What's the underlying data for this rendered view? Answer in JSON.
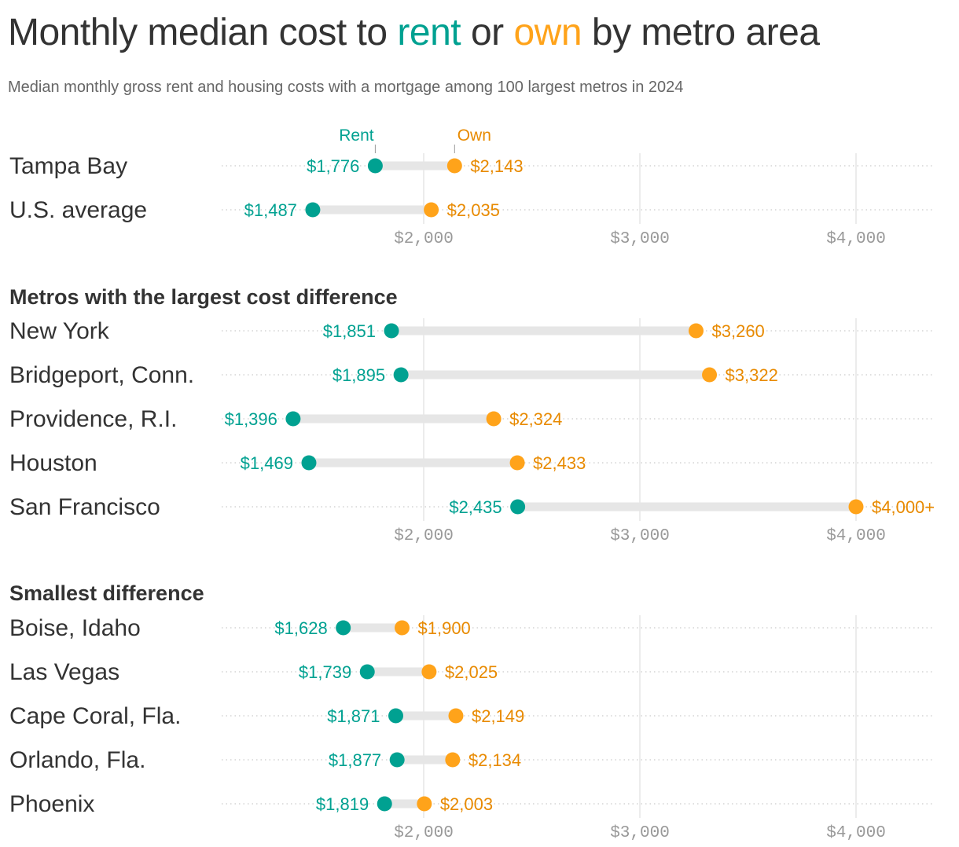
{
  "title": {
    "prefix": "Monthly median cost to ",
    "rent_word": "rent",
    "middle": " or ",
    "own_word": "own",
    "suffix": " by metro area"
  },
  "subtitle": "Median monthly gross rent and housing costs with a mortgage among 100 largest metros in 2024",
  "colors": {
    "rent": "#00a191",
    "own": "#ffa31a",
    "rent_label": "#00a191",
    "own_label": "#e88a00",
    "bar": "#e6e6e6",
    "grid": "#e0e0e0"
  },
  "chart_data": [
    {
      "type": "dumbbell",
      "title": "",
      "legend": {
        "rent": "Rent",
        "own": "Own"
      },
      "xlim": [
        1065,
        4360
      ],
      "xticks": [
        2000,
        3000,
        4000
      ],
      "xtick_labels": [
        "$2,000",
        "$3,000",
        "$4,000"
      ],
      "rows": [
        {
          "label": "Tampa Bay",
          "rent": 1776,
          "own": 2143,
          "rent_label": "$1,776",
          "own_label": "$2,143"
        },
        {
          "label": "U.S. average",
          "rent": 1487,
          "own": 2035,
          "rent_label": "$1,487",
          "own_label": "$2,035"
        }
      ]
    },
    {
      "type": "dumbbell",
      "title": "Metros with the largest cost difference",
      "xlim": [
        1065,
        4360
      ],
      "xticks": [
        2000,
        3000,
        4000
      ],
      "xtick_labels": [
        "$2,000",
        "$3,000",
        "$4,000"
      ],
      "rows": [
        {
          "label": "New York",
          "rent": 1851,
          "own": 3260,
          "rent_label": "$1,851",
          "own_label": "$3,260"
        },
        {
          "label": "Bridgeport, Conn.",
          "rent": 1895,
          "own": 3322,
          "rent_label": "$1,895",
          "own_label": "$3,322"
        },
        {
          "label": "Providence, R.I.",
          "rent": 1396,
          "own": 2324,
          "rent_label": "$1,396",
          "own_label": "$2,324"
        },
        {
          "label": "Houston",
          "rent": 1469,
          "own": 2433,
          "rent_label": "$1,469",
          "own_label": "$2,433"
        },
        {
          "label": "San Francisco",
          "rent": 2435,
          "own": 4000,
          "rent_label": "$2,435",
          "own_label": "$4,000+"
        }
      ]
    },
    {
      "type": "dumbbell",
      "title": "Smallest difference",
      "xlim": [
        1065,
        4360
      ],
      "xticks": [
        2000,
        3000,
        4000
      ],
      "xtick_labels": [
        "$2,000",
        "$3,000",
        "$4,000"
      ],
      "rows": [
        {
          "label": "Boise, Idaho",
          "rent": 1628,
          "own": 1900,
          "rent_label": "$1,628",
          "own_label": "$1,900"
        },
        {
          "label": "Las Vegas",
          "rent": 1739,
          "own": 2025,
          "rent_label": "$1,739",
          "own_label": "$2,025"
        },
        {
          "label": "Cape Coral, Fla.",
          "rent": 1871,
          "own": 2149,
          "rent_label": "$1,871",
          "own_label": "$2,149"
        },
        {
          "label": "Orlando, Fla.",
          "rent": 1877,
          "own": 2134,
          "rent_label": "$1,877",
          "own_label": "$2,134"
        },
        {
          "label": "Phoenix",
          "rent": 1819,
          "own": 2003,
          "rent_label": "$1,819",
          "own_label": "$2,003"
        }
      ]
    }
  ]
}
